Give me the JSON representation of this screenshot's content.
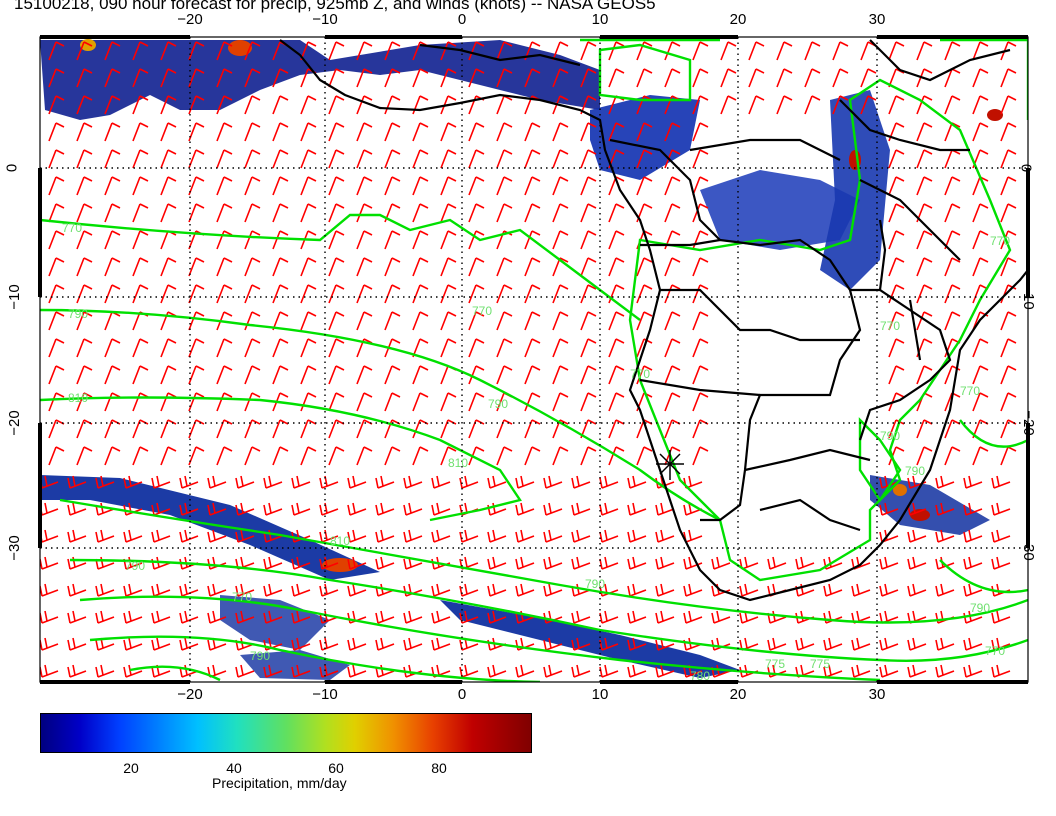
{
  "title": "15100218, 090 hour forecast for precip, 925mb Z, and winds (knots) -- NASA GEOS5",
  "map": {
    "lon_ticks_top": [
      "−20",
      "−10",
      "0",
      "10",
      "20",
      "30"
    ],
    "lon_ticks_bottom": [
      "−20",
      "−10",
      "0",
      "10",
      "20",
      "30"
    ],
    "lat_ticks_left": [
      "0",
      "−10",
      "−20",
      "−30"
    ],
    "lat_ticks_right": [
      "0",
      "−10",
      "−20",
      "−30"
    ],
    "contour_labels": [
      "770",
      "790",
      "810",
      "790",
      "770",
      "790",
      "810",
      "770",
      "790",
      "780",
      "770",
      "790",
      "790",
      "770",
      "810",
      "790",
      "770",
      "770",
      "775",
      "775",
      "790",
      "770"
    ],
    "colors": {
      "contour": "#00e000",
      "wind_barbs": "#ff0000",
      "coast": "#000000",
      "grid": "#000000"
    },
    "marker": "asterisk"
  },
  "colorbar": {
    "ticks": [
      "20",
      "40",
      "60",
      "80"
    ],
    "label": "Precipitation, mm/day",
    "colors": [
      "#000080",
      "#0000c8",
      "#0040ff",
      "#0080ff",
      "#00c0ff",
      "#20e0c0",
      "#60e060",
      "#b0e020",
      "#e0d000",
      "#f09000",
      "#e84000",
      "#c00000",
      "#800000"
    ]
  }
}
